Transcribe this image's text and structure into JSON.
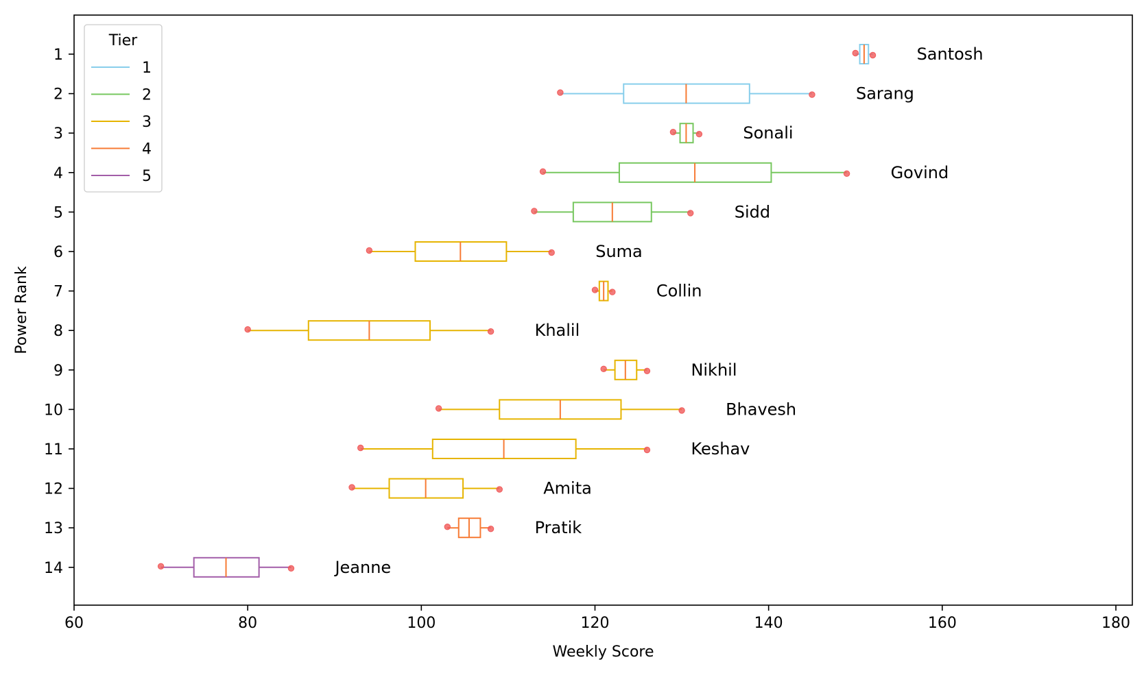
{
  "chart_data": {
    "type": "box",
    "orientation": "horizontal",
    "xlabel": "Weekly Score",
    "ylabel": "Power Rank",
    "xlim": [
      60,
      182
    ],
    "x_ticks": [
      60,
      80,
      100,
      120,
      140,
      160,
      180
    ],
    "y_ticks": [
      1,
      2,
      3,
      4,
      5,
      6,
      7,
      8,
      9,
      10,
      11,
      12,
      13,
      14
    ],
    "grid": false,
    "legend": {
      "title": "Tier",
      "placement": "top-left",
      "entries": [
        {
          "label": "1",
          "color": "#87ceeb"
        },
        {
          "label": "2",
          "color": "#77c75f"
        },
        {
          "label": "3",
          "color": "#e6b400"
        },
        {
          "label": "4",
          "color": "#f77b35"
        },
        {
          "label": "5",
          "color": "#a25da8"
        }
      ]
    },
    "median_color": "#f77b35",
    "point_color": "#f05a5a",
    "players": [
      {
        "rank": 1,
        "name": "Santosh",
        "tier": 1,
        "scores": [
          150,
          152
        ],
        "q1": 150.5,
        "median": 151,
        "q3": 151.5,
        "min": 150,
        "max": 152
      },
      {
        "rank": 2,
        "name": "Sarang",
        "tier": 1,
        "scores": [
          116,
          145
        ],
        "q1": 123.3,
        "median": 130.5,
        "q3": 137.8,
        "min": 116,
        "max": 145
      },
      {
        "rank": 3,
        "name": "Sonali",
        "tier": 2,
        "scores": [
          129,
          132
        ],
        "q1": 129.8,
        "median": 130.5,
        "q3": 131.3,
        "min": 129,
        "max": 132
      },
      {
        "rank": 4,
        "name": "Govind",
        "tier": 2,
        "scores": [
          114,
          149
        ],
        "q1": 122.8,
        "median": 131.5,
        "q3": 140.3,
        "min": 114,
        "max": 149
      },
      {
        "rank": 5,
        "name": "Sidd",
        "tier": 2,
        "scores": [
          113,
          131
        ],
        "q1": 117.5,
        "median": 122,
        "q3": 126.5,
        "min": 113,
        "max": 131
      },
      {
        "rank": 6,
        "name": "Suma",
        "tier": 3,
        "scores": [
          94,
          115
        ],
        "q1": 99.3,
        "median": 104.5,
        "q3": 109.8,
        "min": 94,
        "max": 115
      },
      {
        "rank": 7,
        "name": "Collin",
        "tier": 3,
        "scores": [
          120,
          122
        ],
        "q1": 120.5,
        "median": 121,
        "q3": 121.5,
        "min": 120,
        "max": 122
      },
      {
        "rank": 8,
        "name": "Khalil",
        "tier": 3,
        "scores": [
          80,
          108
        ],
        "q1": 87,
        "median": 94,
        "q3": 101,
        "min": 80,
        "max": 108
      },
      {
        "rank": 9,
        "name": "Nikhil",
        "tier": 3,
        "scores": [
          121,
          126
        ],
        "q1": 122.3,
        "median": 123.5,
        "q3": 124.8,
        "min": 121,
        "max": 126
      },
      {
        "rank": 10,
        "name": "Bhavesh",
        "tier": 3,
        "scores": [
          102,
          130
        ],
        "q1": 109,
        "median": 116,
        "q3": 123,
        "min": 102,
        "max": 130
      },
      {
        "rank": 11,
        "name": "Keshav",
        "tier": 3,
        "scores": [
          93,
          126
        ],
        "q1": 101.3,
        "median": 109.5,
        "q3": 117.8,
        "min": 93,
        "max": 126
      },
      {
        "rank": 12,
        "name": "Amita",
        "tier": 3,
        "scores": [
          92,
          109
        ],
        "q1": 96.3,
        "median": 100.5,
        "q3": 104.8,
        "min": 92,
        "max": 109
      },
      {
        "rank": 13,
        "name": "Pratik",
        "tier": 4,
        "scores": [
          103,
          108
        ],
        "q1": 104.3,
        "median": 105.5,
        "q3": 106.8,
        "min": 103,
        "max": 108
      },
      {
        "rank": 14,
        "name": "Jeanne",
        "tier": 5,
        "scores": [
          70,
          85
        ],
        "q1": 73.8,
        "median": 77.5,
        "q3": 81.3,
        "min": 70,
        "max": 85
      }
    ]
  }
}
